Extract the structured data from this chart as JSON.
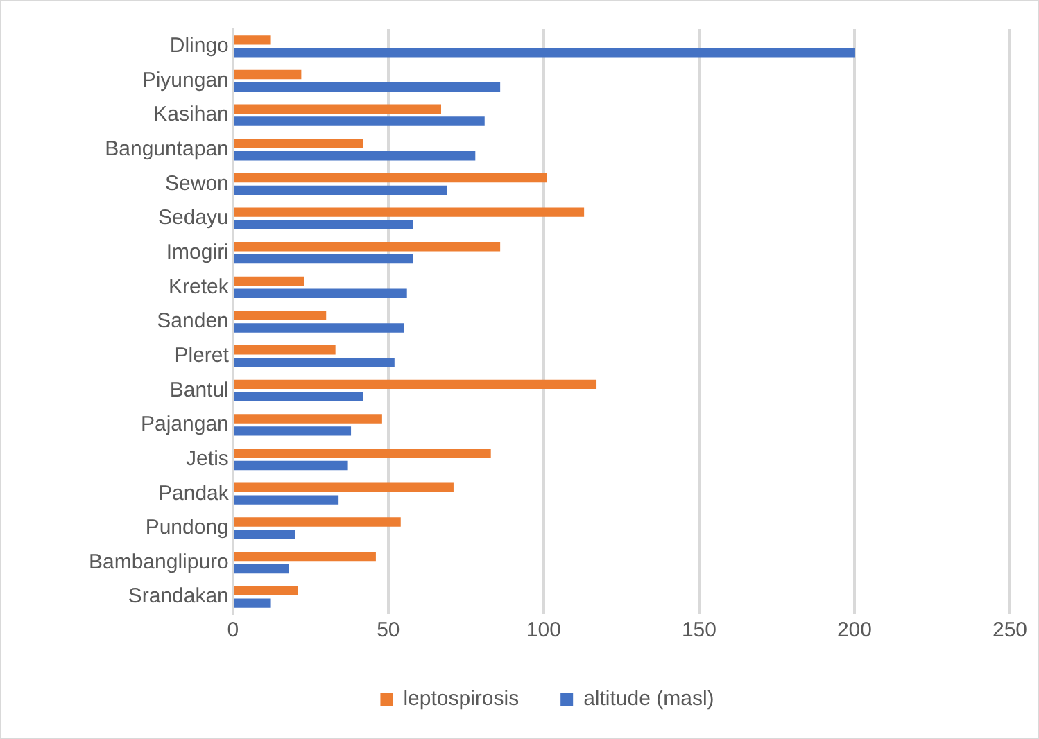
{
  "chart_data": {
    "type": "bar",
    "orientation": "horizontal",
    "categories": [
      "Dlingo",
      "Piyungan",
      "Kasihan",
      "Banguntapan",
      "Sewon",
      "Sedayu",
      "Imogiri",
      "Kretek",
      "Sanden",
      "Pleret",
      "Bantul",
      "Pajangan",
      "Jetis",
      "Pandak",
      "Pundong",
      "Bambanglipuro",
      "Srandakan"
    ],
    "series": [
      {
        "name": "leptospirosis",
        "color": "#ed7d31",
        "values": [
          12,
          22,
          67,
          42,
          101,
          113,
          86,
          23,
          30,
          33,
          117,
          48,
          83,
          71,
          54,
          46,
          21
        ]
      },
      {
        "name": "altitude (masl)",
        "color": "#4472c4",
        "values": [
          200,
          86,
          81,
          78,
          69,
          58,
          58,
          56,
          55,
          52,
          42,
          38,
          37,
          34,
          20,
          18,
          12
        ]
      }
    ],
    "xlim": [
      0,
      250
    ],
    "xticks": [
      0,
      50,
      100,
      150,
      200,
      250
    ],
    "grid": "x",
    "legend": "bottom"
  }
}
